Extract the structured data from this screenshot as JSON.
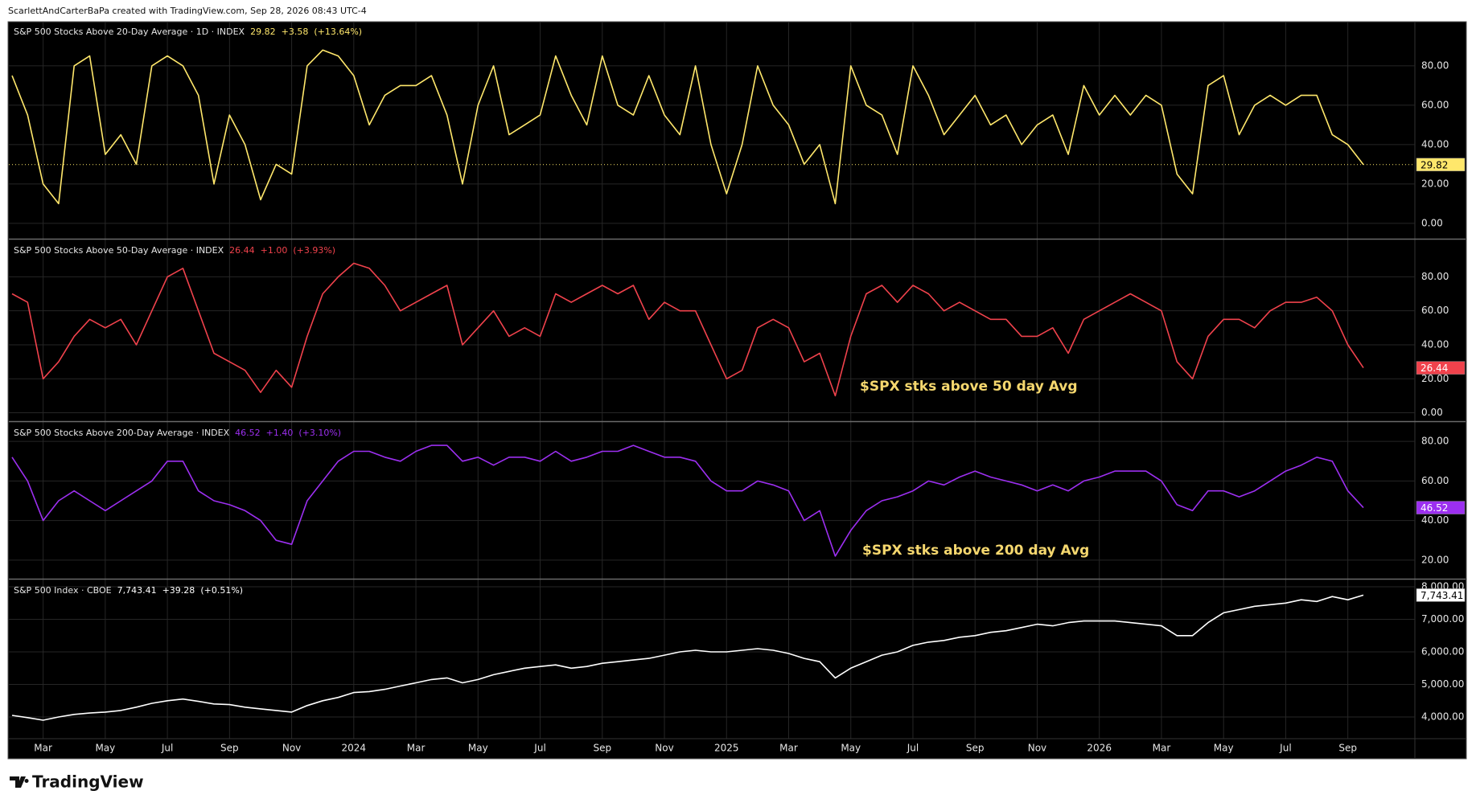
{
  "credit": "ScarlettAndCarterBaPa created with TradingView.com, Sep 28, 2026 08:43 UTC-4",
  "logo": "TradingView",
  "chart_data": [
    {
      "type": "line",
      "title": "S&P 500 Stocks Above 20-Day Average · 1D · INDEX",
      "quote": "29.82",
      "change": "+3.58",
      "change_pct": "(+13.64%)",
      "color": "#ffe76b",
      "badge_text_color": "#000000",
      "price_line": true,
      "values": [
        75,
        55,
        20,
        10,
        80,
        85,
        35,
        45,
        30,
        80,
        85,
        80,
        65,
        20,
        55,
        40,
        12,
        30,
        25,
        80,
        88,
        85,
        75,
        50,
        65,
        70,
        70,
        75,
        55,
        20,
        60,
        80,
        45,
        50,
        55,
        85,
        65,
        50,
        85,
        60,
        55,
        75,
        55,
        45,
        80,
        40,
        15,
        40,
        80,
        60,
        50,
        30,
        40,
        10,
        80,
        60,
        55,
        35,
        80,
        65,
        45,
        55,
        65,
        50,
        55,
        40,
        50,
        55,
        35,
        70,
        55,
        65,
        55,
        65,
        60,
        25,
        15,
        70,
        75,
        45,
        60,
        65,
        60,
        65,
        65,
        45,
        40,
        29.82
      ],
      "ylim": [
        -7,
        102
      ],
      "yticks": [
        {
          "value": 0,
          "label": "0.00"
        },
        {
          "value": 20,
          "label": "20.00"
        },
        {
          "value": 40,
          "label": "40.00"
        },
        {
          "value": 60,
          "label": "60.00"
        },
        {
          "value": 80,
          "label": "80.00"
        }
      ]
    },
    {
      "type": "line",
      "title": "S&P 500 Stocks Above 50-Day Average · INDEX",
      "quote": "26.44",
      "change": "+1.00",
      "change_pct": "(+3.93%)",
      "color": "#f0424c",
      "badge_text_color": "#ffffff",
      "annotation": "$SPX stks above 50 day Avg",
      "values": [
        70,
        65,
        20,
        30,
        45,
        55,
        50,
        55,
        40,
        60,
        80,
        85,
        60,
        35,
        30,
        25,
        12,
        25,
        15,
        45,
        70,
        80,
        88,
        85,
        75,
        60,
        65,
        70,
        75,
        40,
        50,
        60,
        45,
        50,
        45,
        70,
        65,
        70,
        75,
        70,
        75,
        55,
        65,
        60,
        60,
        40,
        20,
        25,
        50,
        55,
        50,
        30,
        35,
        10,
        45,
        70,
        75,
        65,
        75,
        70,
        60,
        65,
        60,
        55,
        55,
        45,
        45,
        50,
        35,
        55,
        60,
        65,
        70,
        65,
        60,
        30,
        20,
        45,
        55,
        55,
        50,
        60,
        65,
        65,
        68,
        60,
        40,
        26.44
      ],
      "ylim": [
        -4,
        101
      ],
      "yticks": [
        {
          "value": 0,
          "label": "0.00"
        },
        {
          "value": 20,
          "label": "20.00"
        },
        {
          "value": 40,
          "label": "40.00"
        },
        {
          "value": 60,
          "label": "60.00"
        },
        {
          "value": 80,
          "label": "80.00"
        }
      ]
    },
    {
      "type": "line",
      "title": "S&P 500 Stocks Above 200-Day Average · INDEX",
      "quote": "46.52",
      "change": "+1.40",
      "change_pct": "(+3.10%)",
      "color": "#9c2ff0",
      "badge_text_color": "#ffffff",
      "annotation": "$SPX stks above 200 day Avg",
      "values": [
        72,
        60,
        40,
        50,
        55,
        50,
        45,
        50,
        55,
        60,
        70,
        70,
        55,
        50,
        48,
        45,
        40,
        30,
        28,
        50,
        60,
        70,
        75,
        75,
        72,
        70,
        75,
        78,
        78,
        70,
        72,
        68,
        72,
        72,
        70,
        75,
        70,
        72,
        75,
        75,
        78,
        75,
        72,
        72,
        70,
        60,
        55,
        55,
        60,
        58,
        55,
        40,
        45,
        22,
        35,
        45,
        50,
        52,
        55,
        60,
        58,
        62,
        65,
        62,
        60,
        58,
        55,
        58,
        55,
        60,
        62,
        65,
        65,
        65,
        60,
        48,
        45,
        55,
        55,
        52,
        55,
        60,
        65,
        68,
        72,
        70,
        55,
        46.52
      ],
      "ylim": [
        11,
        89
      ],
      "yticks": [
        {
          "value": 20,
          "label": "20.00"
        },
        {
          "value": 40,
          "label": "40.00"
        },
        {
          "value": 60,
          "label": "60.00"
        },
        {
          "value": 80,
          "label": "80.00"
        }
      ]
    },
    {
      "type": "line",
      "title": "S&P 500 Index · CBOE",
      "quote": "7,743.41",
      "change": "+39.28",
      "change_pct": "(+0.51%)",
      "color": "#ffffff",
      "badge_text_color": "#000000",
      "values": [
        4050,
        3980,
        3900,
        4000,
        4080,
        4120,
        4150,
        4200,
        4300,
        4420,
        4500,
        4550,
        4480,
        4400,
        4380,
        4300,
        4250,
        4200,
        4150,
        4350,
        4500,
        4600,
        4750,
        4780,
        4850,
        4950,
        5050,
        5150,
        5200,
        5050,
        5150,
        5300,
        5400,
        5500,
        5550,
        5600,
        5500,
        5550,
        5650,
        5700,
        5750,
        5800,
        5900,
        6000,
        6050,
        6000,
        6000,
        6050,
        6100,
        6050,
        5950,
        5800,
        5700,
        5200,
        5500,
        5700,
        5900,
        6000,
        6200,
        6300,
        6350,
        6450,
        6500,
        6600,
        6650,
        6750,
        6850,
        6800,
        6900,
        6950,
        6950,
        6950,
        6900,
        6850,
        6800,
        6500,
        6500,
        6900,
        7200,
        7300,
        7400,
        7450,
        7500,
        7600,
        7550,
        7700,
        7600,
        7743.41
      ],
      "categories": [
        null,
        null,
        "Mar",
        null,
        null,
        null,
        "May",
        null,
        null,
        null,
        "Jul",
        null,
        null,
        null,
        "Sep",
        null,
        null,
        null,
        "Nov",
        null,
        null,
        null,
        "2024",
        null,
        null,
        null,
        "Mar",
        null,
        null,
        null,
        "May",
        null,
        null,
        null,
        "Jul",
        null,
        null,
        null,
        "Sep",
        null,
        null,
        null,
        "Nov",
        null,
        null,
        null,
        "2025",
        null,
        null,
        null,
        "Mar",
        null,
        null,
        null,
        "May",
        null,
        null,
        null,
        "Jul",
        null,
        null,
        null,
        "Sep",
        null,
        null,
        null,
        "Nov",
        null,
        null,
        null,
        "2026",
        null,
        null,
        null,
        "Mar",
        null,
        null,
        null,
        "May",
        null,
        null,
        null,
        "Jul",
        null,
        null,
        null,
        "Sep",
        null
      ],
      "ylim": [
        3333,
        8174
      ],
      "yticks": [
        {
          "value": 4000,
          "label": "4,000.00"
        },
        {
          "value": 5000,
          "label": "5,000.00"
        },
        {
          "value": 6000,
          "label": "6,000.00"
        },
        {
          "value": 7000,
          "label": "7,000.00"
        },
        {
          "value": 8000,
          "label": "8,000.00"
        }
      ]
    }
  ]
}
